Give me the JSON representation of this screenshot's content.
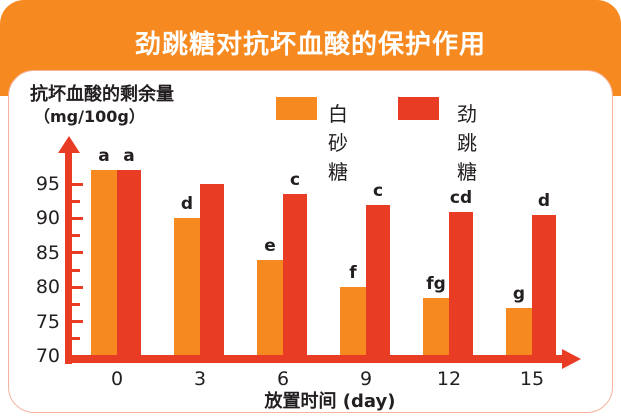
{
  "banner": {
    "title": "劲跳糖对抗坏血酸的保护作用"
  },
  "y_axis_title": {
    "line1": "抗坏血酸的剩余量",
    "line2": "（mg/100g）"
  },
  "x_axis_title": "放置时间  (day)",
  "colors": {
    "banner_orange": "#F6891F",
    "series_orange": "#F6891F",
    "series_red": "#E93C25",
    "axis_red": "#E93C25",
    "card_border": "#F5B39C",
    "text_dark": "#231F20",
    "title_text": "#FFFFFF"
  },
  "legend": {
    "items": [
      {
        "label": "白砂糖",
        "color": "#F6891F"
      },
      {
        "label": "劲跳糖",
        "color": "#E93C25"
      }
    ]
  },
  "chart_data": {
    "type": "bar",
    "title": "劲跳糖对抗坏血酸的保护作用",
    "categories": [
      "0",
      "3",
      "6",
      "9",
      "12",
      "15"
    ],
    "xlabel": "放置时间 (day)",
    "ylabel": "抗坏血酸的剩余量（mg/100g）",
    "ylim": [
      70,
      100
    ],
    "yticks": [
      70,
      75,
      80,
      85,
      90,
      95
    ],
    "minor_tick_step": 2.5,
    "grid": false,
    "legend_position": "top",
    "series": [
      {
        "name": "白砂糖",
        "color": "#F6891F",
        "values": [
          97,
          90,
          84,
          80,
          78.5,
          77
        ],
        "sig_labels": [
          "a",
          "d",
          "e",
          "f",
          "fg",
          "g"
        ]
      },
      {
        "name": "劲跳糖",
        "color": "#E93C25",
        "values": [
          97,
          95,
          93.5,
          92,
          91,
          90.5
        ],
        "sig_labels": [
          "a",
          "",
          "c",
          "c",
          "cd",
          "d"
        ]
      }
    ]
  }
}
